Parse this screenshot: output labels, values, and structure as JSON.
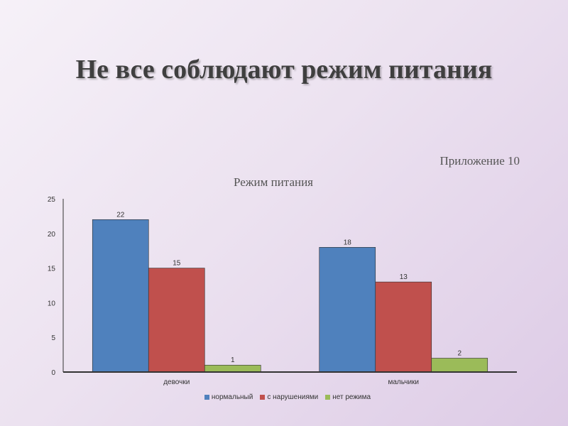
{
  "slide": {
    "title": "Не все соблюдают режим питания",
    "appendix": "Приложение 10"
  },
  "chart_data": {
    "type": "bar",
    "title": "Режим питания",
    "xlabel": "",
    "ylabel": "",
    "categories": [
      "девочки",
      "мальчики"
    ],
    "series": [
      {
        "name": "нормальный",
        "values": [
          22,
          18
        ],
        "color": "#4f81bd"
      },
      {
        "name": "с нарушениями",
        "values": [
          15,
          13
        ],
        "color": "#c0504d"
      },
      {
        "name": "нет режима",
        "values": [
          1,
          2
        ],
        "color": "#9bbb59"
      }
    ],
    "ylim": [
      0,
      25
    ],
    "yticks": [
      0,
      5,
      10,
      15,
      20,
      25
    ],
    "data_labels": [
      [
        "22",
        "18"
      ],
      [
        "15",
        "13"
      ],
      [
        "1",
        "2"
      ]
    ],
    "grid": false,
    "legend": "bottom"
  }
}
